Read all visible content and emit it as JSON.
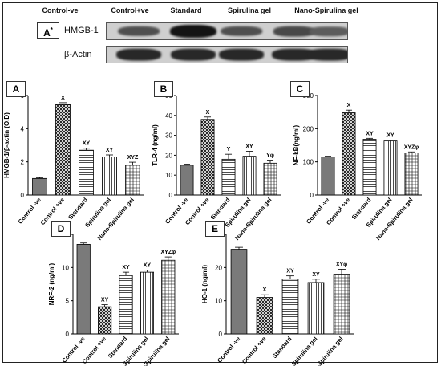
{
  "figure": {
    "blot_panel_label": "A",
    "blot_panel_mark": "*",
    "blot_column_headers": [
      "Control-ve",
      "Control+ve",
      "Standard",
      "Spirulina gel",
      "Nano-Spirulina gel"
    ],
    "blot_rows": [
      {
        "label": "HMGB-1",
        "intensities": [
          0.55,
          1.0,
          0.55,
          0.6,
          0.45
        ]
      },
      {
        "label": "β-Actin",
        "intensities": [
          0.85,
          0.85,
          0.85,
          0.85,
          0.85
        ]
      }
    ]
  },
  "colors": {
    "axis": "#000000",
    "bar_stroke": "#000000",
    "frame": "#222222"
  },
  "chart_data": [
    {
      "panel": "A",
      "type": "bar",
      "categories": [
        "Control -ve",
        "Control +ve",
        "Standard",
        "Spirulina gel",
        "Nano-Spirulina gel"
      ],
      "values": [
        1.0,
        5.45,
        2.7,
        2.3,
        1.8
      ],
      "errors": [
        0.05,
        0.12,
        0.12,
        0.12,
        0.18
      ],
      "annotations": [
        "",
        "X",
        "XY",
        "XY",
        "XYZ"
      ],
      "ylabel": "HMGB-1/β-actin (O.D)",
      "ylim": [
        0,
        6
      ],
      "yticks": [
        0,
        2,
        4,
        6
      ],
      "patterns": [
        "gray",
        "hatch",
        "horizontal",
        "vertical",
        "grid"
      ]
    },
    {
      "panel": "B",
      "type": "bar",
      "categories": [
        "Control -ve",
        "Control +ve",
        "Standard",
        "Spirulina gel",
        "Nano-Spirulina gel"
      ],
      "values": [
        15,
        38,
        18,
        19.5,
        16
      ],
      "errors": [
        0.5,
        1.2,
        2.5,
        2.5,
        1.5
      ],
      "annotations": [
        "",
        "X",
        "Y",
        "XY",
        "Yφ"
      ],
      "ylabel": "TLR-4 (ng/ml)",
      "ylim": [
        0,
        50
      ],
      "yticks": [
        0,
        10,
        20,
        30,
        40,
        50
      ],
      "patterns": [
        "gray",
        "hatch",
        "horizontal",
        "vertical",
        "grid"
      ]
    },
    {
      "panel": "C",
      "type": "bar",
      "categories": [
        "Control -ve",
        "Control +ve",
        "Standard",
        "Spirulina gel",
        "Nano-Spirulina gel"
      ],
      "values": [
        115,
        248,
        168,
        163,
        127
      ],
      "errors": [
        2,
        8,
        3,
        3,
        3
      ],
      "annotations": [
        "",
        "X",
        "XY",
        "XY",
        "XYZφ"
      ],
      "ylabel": "NF-kB(ng/ml)",
      "ylim": [
        0,
        300
      ],
      "yticks": [
        0,
        100,
        200,
        300
      ],
      "patterns": [
        "gray",
        "hatch",
        "horizontal",
        "vertical",
        "grid"
      ]
    },
    {
      "panel": "D",
      "type": "bar",
      "categories": [
        "Control -ve",
        "Control +ve",
        "Standard",
        "Spirulina gel",
        "Nano-Spirulina gel"
      ],
      "values": [
        13.5,
        4.1,
        8.9,
        9.3,
        11.1
      ],
      "errors": [
        0.2,
        0.3,
        0.4,
        0.3,
        0.5
      ],
      "annotations": [
        "",
        "XY",
        "XY",
        "XY",
        "XYZφ"
      ],
      "ylabel": "NRF-2 (ng/ml)",
      "ylim": [
        0,
        15
      ],
      "yticks": [
        0,
        5,
        10,
        15
      ],
      "patterns": [
        "gray",
        "hatch",
        "horizontal",
        "vertical",
        "grid"
      ]
    },
    {
      "panel": "E",
      "type": "bar",
      "categories": [
        "Control -ve",
        "Control +ve",
        "Standard",
        "Spirulina gel",
        "Nano-Spirulina gel"
      ],
      "values": [
        25.5,
        11,
        16.5,
        15.5,
        18
      ],
      "errors": [
        0.6,
        0.8,
        1.0,
        1.0,
        1.5
      ],
      "annotations": [
        "",
        "X",
        "XY",
        "XY",
        "XYφ"
      ],
      "ylabel": "HO-1 (ng/ml)",
      "ylim": [
        0,
        30
      ],
      "yticks": [
        0,
        10,
        20,
        30
      ],
      "patterns": [
        "gray",
        "hatch",
        "horizontal",
        "vertical",
        "grid"
      ]
    }
  ]
}
